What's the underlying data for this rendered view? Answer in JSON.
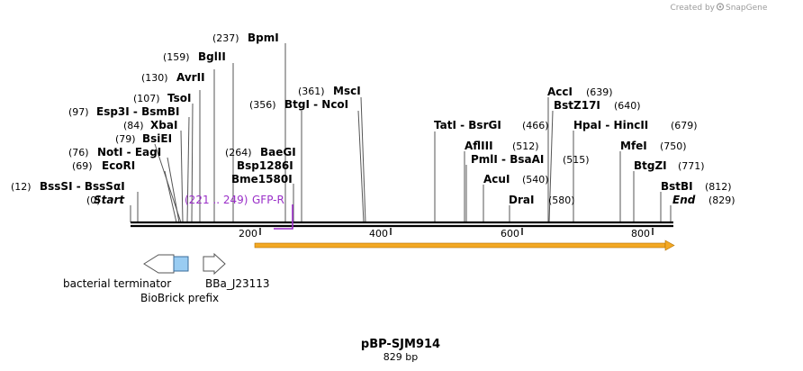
{
  "brand": {
    "created_by": "Created by",
    "name": "SnapGene",
    "icon": "snapgene-logo-icon"
  },
  "plasmid": {
    "name": "pBP-SJM914",
    "length_label": "829 bp",
    "length_bp": 829
  },
  "ruler": {
    "ticks": [
      "200",
      "400",
      "600",
      "800"
    ]
  },
  "ends": {
    "start": {
      "pos": "(0)",
      "label": "Start"
    },
    "end": {
      "pos": "(829)",
      "label": "End"
    }
  },
  "sites": [
    {
      "pos": "(12)",
      "name": "BssSI  -  BssSαI"
    },
    {
      "pos": "(69)",
      "name": "EcoRI"
    },
    {
      "pos": "(76)",
      "name": "NotI  -  EagI"
    },
    {
      "pos": "(79)",
      "name": "BsiEI"
    },
    {
      "pos": "(84)",
      "name": "XbaI"
    },
    {
      "pos": "(97)",
      "name": "Esp3I  -  BsmBI"
    },
    {
      "pos": "(107)",
      "name": "TsoI"
    },
    {
      "pos": "(130)",
      "name": "AvrII"
    },
    {
      "pos": "(159)",
      "name": "BglII"
    },
    {
      "pos": "(237)",
      "name": "BpmI"
    },
    {
      "pos": "(264)",
      "name": "BaeGI"
    },
    {
      "pos": "",
      "name": "Bsp1286I"
    },
    {
      "pos": "",
      "name": "Bme1580I"
    },
    {
      "pos": "(356)",
      "name": "BtgI  -  NcoI"
    },
    {
      "pos": "(361)",
      "name": "MscI"
    },
    {
      "pos": "",
      "name": "TatI  -  BsrGI"
    },
    {
      "pos": "(466)",
      "name": ""
    },
    {
      "pos": "(512)",
      "name": "AflIII"
    },
    {
      "pos": "(515)",
      "name": "PmlI  -  BsaAI"
    },
    {
      "pos": "(540)",
      "name": "AcuI"
    },
    {
      "pos": "(580)",
      "name": "DraI"
    },
    {
      "pos": "(639)",
      "name": "AccI"
    },
    {
      "pos": "(640)",
      "name": "BstZ17I"
    },
    {
      "pos": "(679)",
      "name": "HpaI  -  HincII"
    },
    {
      "pos": "(750)",
      "name": "MfeI"
    },
    {
      "pos": "(771)",
      "name": "BtgZI"
    },
    {
      "pos": "(812)",
      "name": "BstBI"
    }
  ],
  "primer": {
    "range": "(221 .. 249)",
    "name": "GFP-R",
    "color": "#9a2fc8"
  },
  "features": {
    "terminator": {
      "label": "bacterial terminator",
      "color": "#ffffff"
    },
    "biobrick_prefix": {
      "label": "BioBrick prefix",
      "color": "#99ccf2"
    },
    "promoter": {
      "label": "BBa_J23113",
      "color": "#ffffff"
    },
    "orf": {
      "color": "#f3a823",
      "start_bp": 190,
      "end_bp": 829
    }
  }
}
